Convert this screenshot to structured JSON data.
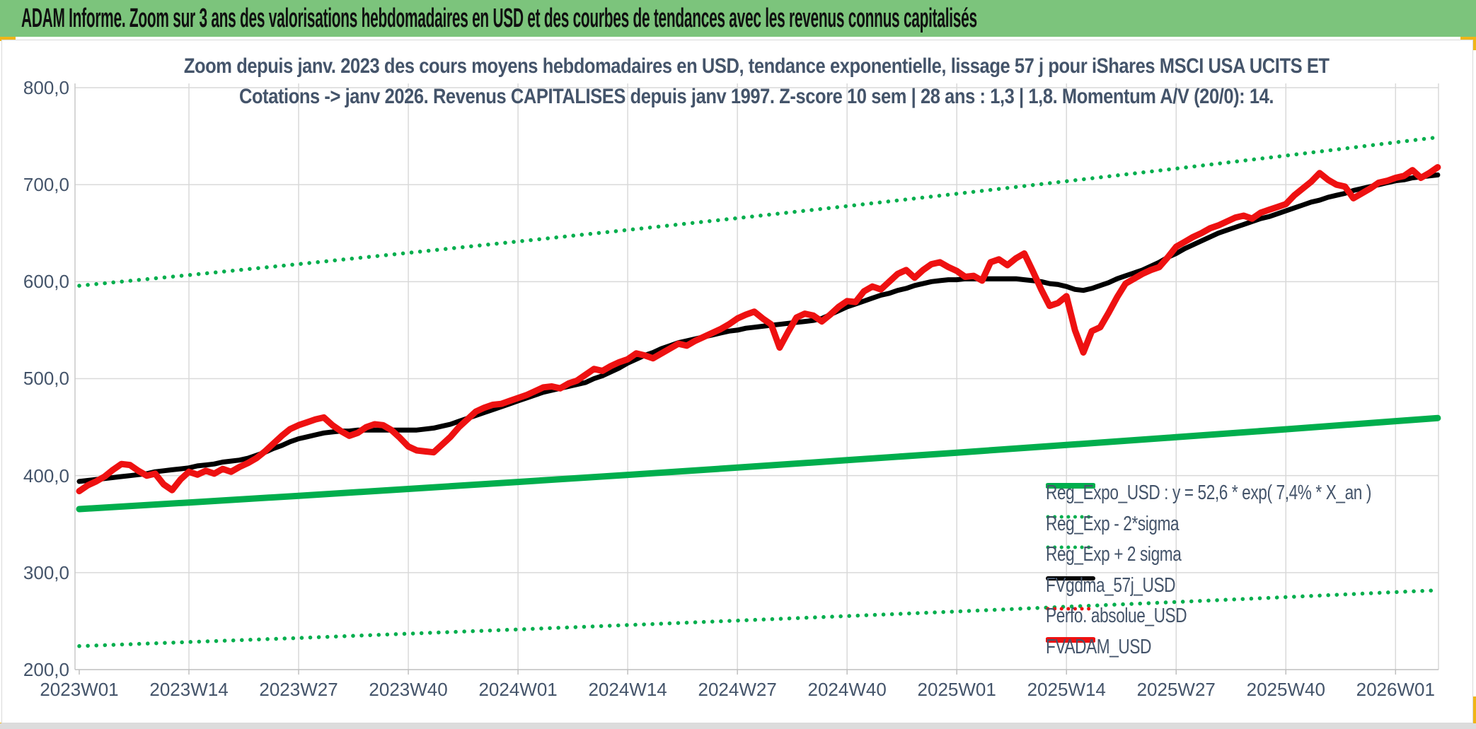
{
  "banner": {
    "title": "ADAM Informe. Zoom sur 3 ans des valorisations hebdomadaires en USD et des courbes de tendances avec les revenus connus capitalisés",
    "bg_color": "#7cc47c",
    "text_color": "#101010"
  },
  "chart_title": {
    "line1": "Zoom depuis janv. 2023 des cours moyens hebdomadaires en USD, tendance exponentielle, lissage 57 j pour iShares MSCI USA UCITS ET",
    "line2": "Cotations -> janv 2026. Revenus CAPITALISES depuis janv 1997. Z-score 10 sem | 28 ans : 1,3 | 1,8. Momentum A/V (20/0): 14.",
    "color": "#44546a"
  },
  "colors": {
    "green_series": "#00ae4d",
    "red_series": "#ee1111",
    "black_series": "#000000",
    "gridline": "#d9d9d9",
    "axis_line": "#bfbfbf",
    "text": "#44546a",
    "banner_green": "#7cc47c",
    "sheet_yellow": "#efb517"
  },
  "legend": {
    "entries": [
      {
        "label": "Reg_Expo_USD : y = 52,6 * exp( 7,4% *  X_an )",
        "style": "solid",
        "color": "#00ae4d",
        "width": 8
      },
      {
        "label": "Reg_Exp - 2*sigma",
        "style": "dotted",
        "color": "#00ae4d",
        "width": 5
      },
      {
        "label": "Reg_Exp + 2 sigma",
        "style": "dotted",
        "color": "#00ae4d",
        "width": 5
      },
      {
        "label": "FVgdma_57j_USD",
        "style": "solid",
        "color": "#000000",
        "width": 6
      },
      {
        "label": "Perfo. absolue_USD",
        "style": "dotted",
        "color": "#ee1111",
        "width": 5
      },
      {
        "label": "FVADAM_USD",
        "style": "solid",
        "color": "#ee1111",
        "width": 8
      }
    ]
  },
  "chart_data": {
    "type": "line",
    "title": "Zoom depuis janv. 2023 des cours moyens hebdomadaires en USD, tendance exponentielle, lissage 57 j pour iShares MSCI USA UCITS ET Cotations -> janv 2026.",
    "xlabel": "",
    "ylabel": "",
    "ylim": [
      200,
      800
    ],
    "y_tick_labels": [
      "800,0",
      "700,0",
      "600,0",
      "500,0",
      "400,0",
      "300,0",
      "200,0"
    ],
    "x_tick_labels": [
      "2023W01",
      "2023W14",
      "2023W27",
      "2023W40",
      "2024W01",
      "2024W14",
      "2024W27",
      "2024W40",
      "2025W01",
      "2025W14",
      "2025W27",
      "2025W40",
      "2026W01"
    ],
    "weeks_per_tick": 13,
    "grid": true,
    "legend_position": "inside lower right",
    "regression_formula": "y = 52,6 * exp( 7,4% * X_an )",
    "regression_sample_weeks": [
      0,
      13,
      26,
      39,
      52,
      65,
      78,
      91,
      104,
      117,
      130,
      143,
      156,
      161
    ],
    "series": [
      {
        "name": "Reg_Expo_USD",
        "style": "solid",
        "color": "#00ae4d",
        "width": 9,
        "sampling": "regression_sample_weeks",
        "values": [
          365.5,
          372.3,
          379.2,
          386.3,
          393.5,
          400.8,
          408.3,
          415.9,
          423.7,
          431.6,
          439.6,
          447.8,
          456.2,
          459.4
        ]
      },
      {
        "name": "Reg_Exp - 2*sigma",
        "style": "dotted",
        "color": "#00ae4d",
        "width": 5.5,
        "sampling": "regression_sample_weeks",
        "values": [
          224.2,
          228.4,
          232.6,
          237.0,
          241.4,
          245.9,
          250.5,
          255.2,
          259.9,
          264.8,
          269.7,
          274.7,
          279.9,
          281.8
        ]
      },
      {
        "name": "Reg_Exp + 2 sigma",
        "style": "dotted",
        "color": "#00ae4d",
        "width": 5.5,
        "sampling": "regression_sample_weeks",
        "values": [
          595.8,
          606.8,
          618.1,
          629.7,
          641.4,
          653.3,
          665.5,
          677.9,
          690.6,
          703.5,
          716.6,
          729.9,
          743.6,
          748.8
        ]
      },
      {
        "name": "FVgdma_57j_USD",
        "style": "solid",
        "color": "#000000",
        "width": 7,
        "sampling": "weekly",
        "values": [
          394,
          395,
          396,
          397,
          398,
          399,
          400,
          401,
          402,
          404,
          405,
          406,
          407,
          408,
          410,
          411,
          412,
          414,
          415,
          416,
          418,
          421,
          424,
          428,
          431,
          435,
          438,
          440,
          442,
          444,
          445,
          446,
          446,
          447,
          447,
          447,
          447,
          447,
          447,
          447,
          447,
          448,
          449,
          451,
          453,
          456,
          459,
          462,
          465,
          468,
          471,
          474,
          477,
          480,
          483,
          486,
          488,
          490,
          492,
          494,
          496,
          500,
          503,
          507,
          511,
          516,
          520,
          524,
          527,
          531,
          534,
          537,
          539,
          541,
          543,
          545,
          547,
          549,
          550,
          552,
          553,
          554,
          555,
          556,
          557,
          558,
          559,
          560,
          562,
          566,
          570,
          574,
          577,
          580,
          583,
          586,
          588,
          591,
          593,
          596,
          598,
          600,
          601,
          602,
          602,
          603,
          603,
          603,
          603,
          603,
          603,
          603,
          602,
          601,
          600,
          598,
          597,
          595,
          592,
          591,
          593,
          596,
          599,
          603,
          606,
          609,
          612,
          616,
          620,
          625,
          629,
          634,
          638,
          642,
          646,
          650,
          653,
          656,
          659,
          662,
          665,
          667,
          670,
          673,
          676,
          679,
          682,
          684,
          687,
          689,
          691,
          694,
          696,
          698,
          700,
          702,
          704,
          705,
          707,
          708,
          709,
          710
        ]
      },
      {
        "name": "Perfo. absolue_USD",
        "style": "dotted",
        "color": "#ee1111",
        "width": 5.5,
        "sampling": "weekly",
        "visible_in_plot": false,
        "note": "only the red dotted legend key is visible; the curve is hidden behind Reg_Exp - 2*sigma",
        "values": []
      },
      {
        "name": "FVADAM_USD",
        "style": "solid",
        "color": "#ee1111",
        "width": 9,
        "sampling": "weekly",
        "values": [
          384,
          390,
          394,
          399,
          406,
          412,
          411,
          405,
          400,
          402,
          391,
          385,
          396,
          404,
          401,
          405,
          402,
          407,
          404,
          409,
          413,
          418,
          425,
          433,
          441,
          448,
          452,
          455,
          458,
          460,
          452,
          446,
          441,
          444,
          450,
          453,
          452,
          447,
          439,
          430,
          426,
          425,
          424,
          432,
          440,
          450,
          458,
          466,
          470,
          473,
          474,
          477,
          480,
          483,
          487,
          491,
          492,
          490,
          495,
          498,
          504,
          510,
          508,
          513,
          517,
          520,
          526,
          524,
          521,
          526,
          531,
          536,
          534,
          539,
          543,
          547,
          551,
          556,
          562,
          566,
          569,
          562,
          556,
          532,
          548,
          563,
          567,
          565,
          559,
          566,
          574,
          580,
          579,
          590,
          595,
          592,
          600,
          608,
          612,
          604,
          612,
          618,
          620,
          615,
          611,
          605,
          606,
          601,
          620,
          623,
          617,
          624,
          629,
          611,
          592,
          575,
          578,
          585,
          550,
          527,
          549,
          553,
          568,
          584,
          598,
          603,
          608,
          612,
          615,
          625,
          636,
          641,
          646,
          650,
          655,
          658,
          662,
          666,
          668,
          665,
          671,
          674,
          677,
          680,
          689,
          696,
          703,
          712,
          705,
          700,
          698,
          686,
          691,
          696,
          702,
          704,
          707,
          709,
          715,
          707,
          712,
          718
        ]
      }
    ]
  }
}
